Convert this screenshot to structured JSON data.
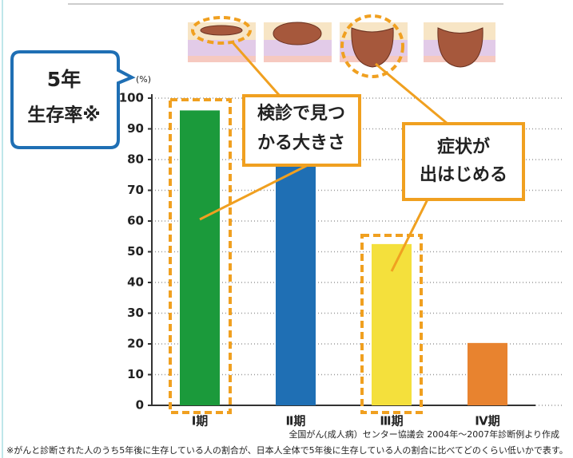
{
  "chart_data": {
    "type": "bar",
    "categories": [
      "Ⅰ期",
      "Ⅱ期",
      "Ⅲ期",
      "Ⅳ期"
    ],
    "values": [
      96,
      85,
      52.5,
      20.3
    ],
    "colors": [
      "#1b9a3b",
      "#1f6fb4",
      "#f4e03c",
      "#e8832f"
    ],
    "ylim": [
      0,
      100
    ],
    "yticks": [
      0,
      10,
      20,
      30,
      40,
      50,
      60,
      70,
      80,
      90,
      100
    ],
    "y_unit": "(%)",
    "grid": true,
    "callout": [
      "5年",
      "生存率※"
    ],
    "annotations": [
      {
        "lines": [
          "検診で見つ",
          "かる大きさ"
        ]
      },
      {
        "lines": [
          "症状が",
          "出はじめる"
        ]
      }
    ],
    "source": "全国がん(成人病）センター協議会 2004年～2007年診断例より作成",
    "footnote": "※がんと診断された人のうち5年後に生存している人の割合が、日本人全体で5年後に生存している人の割合に比べてどのくらい低いかで表す。"
  }
}
